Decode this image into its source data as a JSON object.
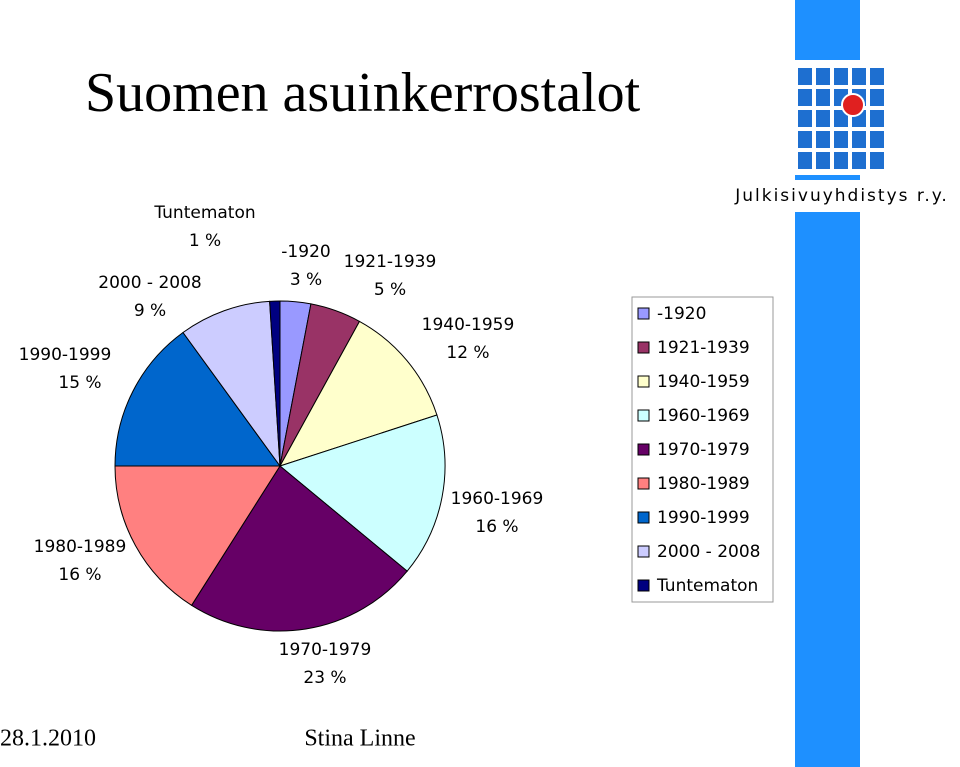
{
  "chart_data": {
    "type": "pie",
    "title": "Suomen asuinkerrostalot",
    "categories": [
      "-1920",
      "1921-1939",
      "1940-1959",
      "1960-1969",
      "1970-1979",
      "1980-1989",
      "1990-1999",
      "2000 - 2008",
      "Tuntematon"
    ],
    "values": [
      3,
      5,
      12,
      16,
      23,
      16,
      15,
      9,
      1
    ],
    "value_labels": [
      "3 %",
      "5 %",
      "12 %",
      "16 %",
      "23 %",
      "16 %",
      "15 %",
      "9 %",
      "1 %"
    ],
    "colors": [
      "#9999ff",
      "#993366",
      "#ffffcc",
      "#ccffff",
      "#660066",
      "#ff8080",
      "#0066cc",
      "#ccccff",
      "#000080"
    ],
    "legend": "right"
  },
  "logo_text": "Julkisivuyhdistys r.y.",
  "footer": {
    "date": "28.1.2010",
    "author": "Stina Linne"
  }
}
